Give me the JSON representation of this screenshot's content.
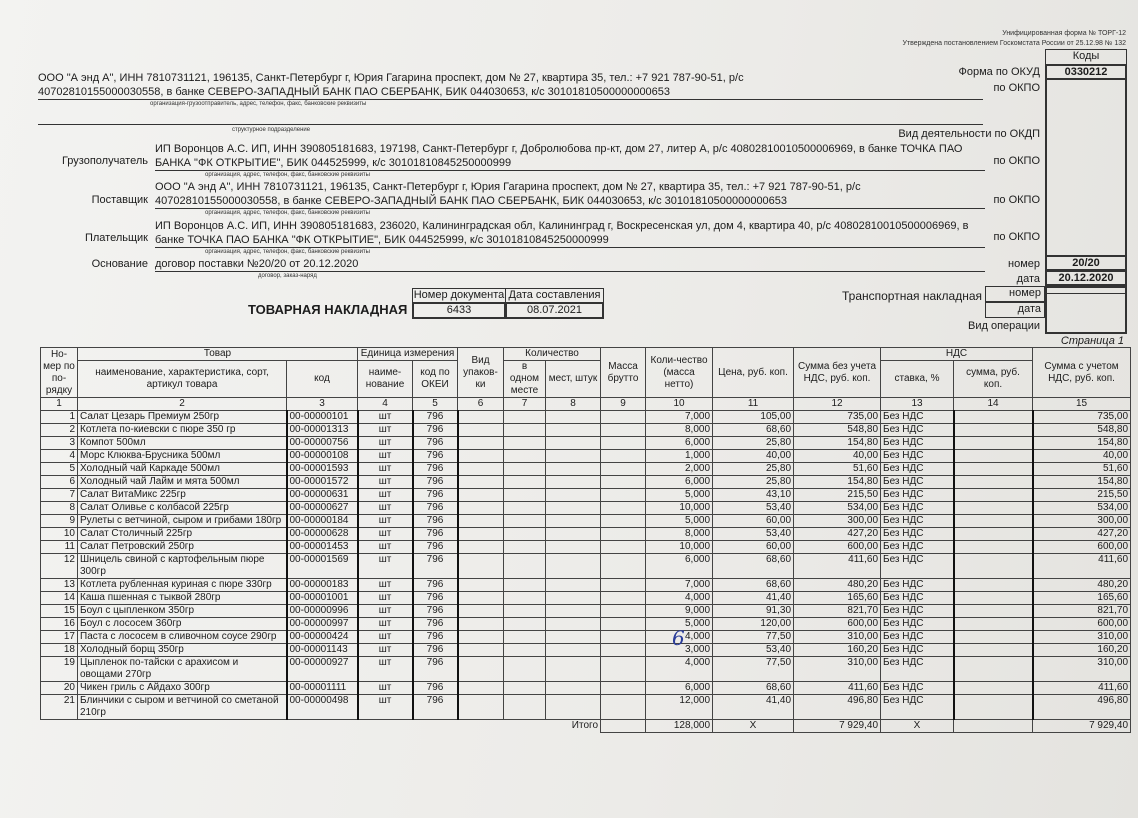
{
  "form_header": {
    "unified": "Унифицированная форма № ТОРГ-12",
    "approved": "Утверждена постановлением Госкомстата России от 25.12.98 № 132",
    "codes": "Коды"
  },
  "okud": {
    "label": "Форма по ОКУД",
    "value": "0330212"
  },
  "okpo_label": "по ОКПО",
  "okdp_label": "Вид деятельности по ОКДП",
  "shipper": {
    "line1": "ООО \"А энд А\", ИНН 7810731121, 196135, Санкт-Петербург г, Юрия Гагарина проспект, дом № 27, квартира 35, тел.: +7 921 787-90-51, р/с",
    "line2": "40702810155000030558, в банке СЕВЕРО-ЗАПАДНЫЙ БАНК ПАО СБЕРБАНК, БИК 044030653, к/с 30101810500000000653",
    "caption": "организация-грузоотправитель, адрес, телефон, факс, банковские реквизиты"
  },
  "subdivision_caption": "структурное подразделение",
  "consignee": {
    "label": "Грузополучатель",
    "line1": "ИП Воронцов А.С. ИП, ИНН 390805181683, 197198, Санкт-Петербург г, Добролюбова пр-кт, дом 27, литер А, р/с 40802810010500006969, в банке ТОЧКА ПАО",
    "line2": "БАНКА \"ФК ОТКРЫТИЕ\", БИК 044525999, к/с 30101810845250000999",
    "caption": "организация, адрес, телефон, факс, банковские реквизиты"
  },
  "supplier": {
    "label": "Поставщик",
    "line1": "ООО \"А энд А\", ИНН 7810731121, 196135, Санкт-Петербург г, Юрия Гагарина проспект, дом № 27, квартира 35, тел.: +7 921 787-90-51, р/с",
    "line2": "40702810155000030558, в банке СЕВЕРО-ЗАПАДНЫЙ БАНК ПАО СБЕРБАНК, БИК 044030653, к/с 30101810500000000653",
    "caption": "организация, адрес, телефон, факс, банковские реквизиты"
  },
  "payer": {
    "label": "Плательщик",
    "line1": "ИП Воронцов А.С. ИП, ИНН 390805181683, 236020, Калининградская обл, Калининград г, Воскресенская ул, дом 4, квартира 40, р/с 40802810010500006969, в",
    "line2": "банке ТОЧКА ПАО БАНКА \"ФК ОТКРЫТИЕ\", БИК 044525999, к/с 30101810845250000999",
    "caption": "организация, адрес, телефон, факс, банковские реквизиты"
  },
  "basis": {
    "label": "Основание",
    "value": "договор поставки №20/20 от 20.12.2020",
    "caption": "договор, заказ-наряд",
    "number_label": "номер",
    "number": "20/20",
    "date_label": "дата",
    "date": "20.12.2020"
  },
  "title": "ТОВАРНАЯ НАКЛАДНАЯ",
  "doc": {
    "number_label": "Номер документа",
    "date_label": "Дата составления",
    "number": "6433",
    "date": "08.07.2021"
  },
  "transport": {
    "label": "Транспортная накладная",
    "number_label": "номер",
    "date_label": "дата",
    "operation_label": "Вид операции"
  },
  "page_label": "Страница 1",
  "columns": {
    "no": "Но-мер по по-рядку",
    "goods": "Товар",
    "goods_name": "наименование, характеристика, сорт, артикул товара",
    "code": "код",
    "unit": "Единица измерения",
    "unit_name": "наиме-нование",
    "okei": "код по ОКЕИ",
    "pack": "Вид упаков-ки",
    "qty": "Количество",
    "per_place": "в одном месте",
    "places": "мест, штук",
    "gross": "Масса брутто",
    "net": "Коли-чество (масса нетто)",
    "price": "Цена, руб. коп.",
    "sum_no_vat": "Сумма без учета НДС, руб. коп.",
    "vat": "НДС",
    "rate": "ставка, %",
    "vat_sum": "сумма, руб. коп.",
    "total": "Сумма с учетом НДС, руб. коп.",
    "nums": [
      "1",
      "2",
      "3",
      "4",
      "5",
      "6",
      "7",
      "8",
      "9",
      "10",
      "11",
      "12",
      "13",
      "14",
      "15"
    ]
  },
  "rows": [
    [
      "1",
      "Салат Цезарь Премиум 250гр",
      "00-00000101",
      "шт",
      "796",
      "7,000",
      "105,00",
      "735,00",
      "Без НДС",
      "735,00"
    ],
    [
      "2",
      "Котлета по-киевски с пюре 350 гр",
      "00-00001313",
      "шт",
      "796",
      "8,000",
      "68,60",
      "548,80",
      "Без НДС",
      "548,80"
    ],
    [
      "3",
      "Компот 500мл",
      "00-00000756",
      "шт",
      "796",
      "6,000",
      "25,80",
      "154,80",
      "Без НДС",
      "154,80"
    ],
    [
      "4",
      "Морс Клюква-Брусника 500мл",
      "00-00000108",
      "шт",
      "796",
      "1,000",
      "40,00",
      "40,00",
      "Без НДС",
      "40,00"
    ],
    [
      "5",
      "Холодный чай Каркаде 500мл",
      "00-00001593",
      "шт",
      "796",
      "2,000",
      "25,80",
      "51,60",
      "Без НДС",
      "51,60"
    ],
    [
      "6",
      "Холодный чай Лайм и мята 500мл",
      "00-00001572",
      "шт",
      "796",
      "6,000",
      "25,80",
      "154,80",
      "Без НДС",
      "154,80"
    ],
    [
      "7",
      "Салат ВитаМикс 225гр",
      "00-00000631",
      "шт",
      "796",
      "5,000",
      "43,10",
      "215,50",
      "Без НДС",
      "215,50"
    ],
    [
      "8",
      "Салат Оливье с колбасой 225гр",
      "00-00000627",
      "шт",
      "796",
      "10,000",
      "53,40",
      "534,00",
      "Без НДС",
      "534,00"
    ],
    [
      "9",
      "Рулеты с ветчиной, сыром и грибами 180гр",
      "00-00000184",
      "шт",
      "796",
      "5,000",
      "60,00",
      "300,00",
      "Без НДС",
      "300,00"
    ],
    [
      "10",
      "Салат Столичный 225гр",
      "00-00000628",
      "шт",
      "796",
      "8,000",
      "53,40",
      "427,20",
      "Без НДС",
      "427,20"
    ],
    [
      "11",
      "Салат Петровский 250гр",
      "00-00001453",
      "шт",
      "796",
      "10,000",
      "60,00",
      "600,00",
      "Без НДС",
      "600,00"
    ],
    [
      "12",
      "Шницель свиной с картофельным пюре 300гр",
      "00-00001569",
      "шт",
      "796",
      "6,000",
      "68,60",
      "411,60",
      "Без НДС",
      "411,60"
    ],
    [
      "13",
      "Котлета рубленная куриная с пюре 330гр",
      "00-00000183",
      "шт",
      "796",
      "7,000",
      "68,60",
      "480,20",
      "Без НДС",
      "480,20"
    ],
    [
      "14",
      "Каша пшенная с тыквой 280гр",
      "00-00001001",
      "шт",
      "796",
      "4,000",
      "41,40",
      "165,60",
      "Без НДС",
      "165,60"
    ],
    [
      "15",
      "Боул с цыпленком 350гр",
      "00-00000996",
      "шт",
      "796",
      "9,000",
      "91,30",
      "821,70",
      "Без НДС",
      "821,70"
    ],
    [
      "16",
      "Боул с лососем 360гр",
      "00-00000997",
      "шт",
      "796",
      "5,000",
      "120,00",
      "600,00",
      "Без НДС",
      "600,00"
    ],
    [
      "17",
      "Паста с лососем в сливочном соусе 290гр",
      "00-00000424",
      "шт",
      "796",
      "4,000",
      "77,50",
      "310,00",
      "Без НДС",
      "310,00"
    ],
    [
      "18",
      "Холодный борщ 350гр",
      "00-00001143",
      "шт",
      "796",
      "3,000",
      "53,40",
      "160,20",
      "Без НДС",
      "160,20"
    ],
    [
      "19",
      "Цыпленок по-тайски с арахисом и овощами 270гр",
      "00-00000927",
      "шт",
      "796",
      "4,000",
      "77,50",
      "310,00",
      "Без НДС",
      "310,00"
    ],
    [
      "20",
      "Чикен гриль с Айдахо 300гр",
      "00-00001111",
      "шт",
      "796",
      "6,000",
      "68,60",
      "411,60",
      "Без НДС",
      "411,60"
    ],
    [
      "21",
      "Блинчики с сыром и ветчиной со сметаной 210гр",
      "00-00000498",
      "шт",
      "796",
      "12,000",
      "41,40",
      "496,80",
      "Без НДС",
      "496,80"
    ]
  ],
  "totals": {
    "label": "Итого",
    "qty": "128,000",
    "price": "X",
    "sum": "7 929,40",
    "vat": "X",
    "total": "7 929,40"
  },
  "handwritten": {
    "note": "6"
  }
}
